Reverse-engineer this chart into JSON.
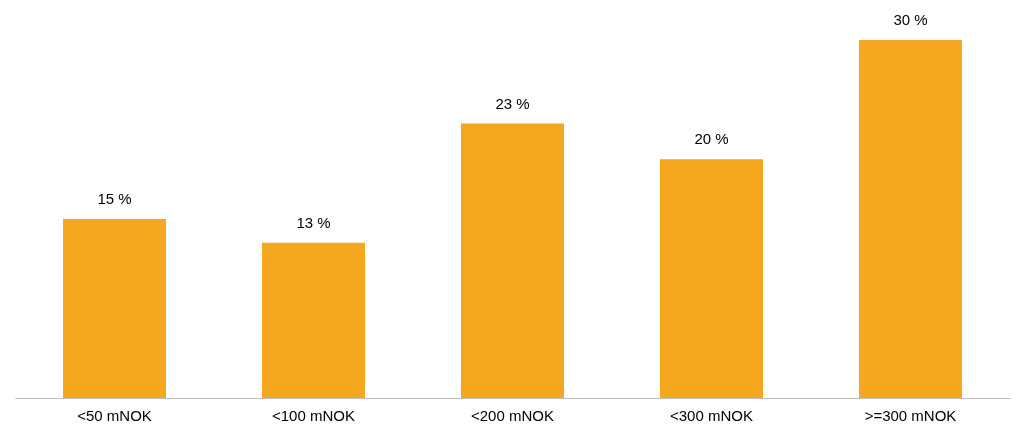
{
  "chart_data": {
    "type": "bar",
    "categories": [
      "<50 mNOK",
      "<100 mNOK",
      "<200 mNOK",
      "<300 mNOK",
      ">=300 mNOK"
    ],
    "values": [
      15,
      13,
      23,
      20,
      30
    ],
    "value_labels": [
      "15 %",
      "13 %",
      "23 %",
      "20 %",
      "30 %"
    ],
    "color": "#f5a81f"
  }
}
